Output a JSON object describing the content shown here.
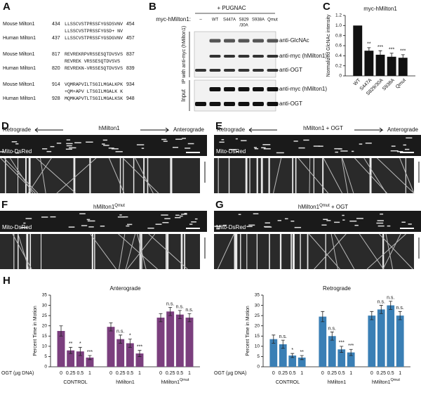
{
  "alignment": {
    "panel_label": "A",
    "blocks": [
      {
        "rows": [
          {
            "species": "Mouse Milton1",
            "start": 434,
            "seq": "LLSSCVSTPRSSFYGSDSVNV",
            "end": 454
          },
          {
            "consensus": "LLSSCVSTPRSSFYGSD+ NV"
          },
          {
            "species": "Human Milton1",
            "start": 437,
            "seq": "LLSSCVSTPRSSFYGSDGVNV",
            "end": 457
          }
        ]
      },
      {
        "rows": [
          {
            "species": "Mouse Milton1",
            "start": 817,
            "seq": "REVREKRPVRSSESQTDVSVS",
            "end": 837
          },
          {
            "consensus": "REVREK  VRSSESQTDVSVS"
          },
          {
            "species": "Human Milton1",
            "start": 820,
            "seq": "REVREKN-VRSSESQTDVSVS",
            "end": 839
          }
        ]
      },
      {
        "rows": [
          {
            "species": "Mouse Milton1",
            "start": 914,
            "seq": "VQMRAPVILTSGILMGALKPK",
            "end": 934
          },
          {
            "consensus": "+QM+APV LTSGILMGALK K"
          },
          {
            "species": "Human Milton1",
            "start": 928,
            "seq": "MQMKAPVTLTSGILMGALKSK",
            "end": 948
          }
        ]
      }
    ]
  },
  "blot": {
    "panel_label": "B",
    "treatment": "+ PUGNAC",
    "construct_label": "myc-hMilton1:",
    "lanes": [
      [
        "–"
      ],
      [
        "WT"
      ],
      [
        "S447A"
      ],
      [
        "S829",
        "/30A"
      ],
      [
        "S938A"
      ],
      [
        "Qmut"
      ]
    ],
    "ip_label": "IP with anti-myc (hMilton1)",
    "input_label": "Input",
    "ip_antibodies": [
      "anti-GlcNAc",
      "anti-myc (hMilton1)",
      "anti-OGT"
    ],
    "input_antibodies": [
      "anti-myc (hMilton1)",
      "anti-OGT"
    ]
  },
  "kymographs": [
    {
      "panel_label": "D",
      "left": "Retrograde",
      "title": {
        "main": "hMilton1"
      },
      "right": "Anterograde",
      "channel": "Mito-DsRed"
    },
    {
      "panel_label": "E",
      "left": "Retrograde",
      "title": {
        "main": "hMilton1 + OGT"
      },
      "right": "Anterograde",
      "channel": "Mito-DsRed"
    },
    {
      "panel_label": "F",
      "title": {
        "main": "hMilton1",
        "sup": "Qmut"
      },
      "channel": "Mito-DsRed"
    },
    {
      "panel_label": "G",
      "title": {
        "main": "hMilton1",
        "sup": "Qmut",
        "tail": " + OGT"
      },
      "channel": "Mito-DsRed"
    }
  ],
  "chart_data": [
    {
      "panel_label": "C",
      "type": "bar",
      "title": "myc-hMilton1",
      "ylabel": "Normalized GlcNAc intensity",
      "categories": [
        "WT",
        "S447A",
        "S829/30A",
        "S938A",
        "Qmut"
      ],
      "values": [
        1,
        0.5,
        0.42,
        0.38,
        0.36
      ],
      "errors": [
        null,
        0.06,
        0.08,
        0.07,
        0.06
      ],
      "annotations": [
        null,
        "**",
        "***",
        "***",
        "***"
      ],
      "color": "#111111",
      "ylim": [
        0,
        1.2
      ],
      "yticks": [
        0,
        0.2,
        0.4,
        0.6,
        0.8,
        {
          "value": 1,
          "label": "1.0"
        },
        1.2
      ]
    },
    {
      "panel_label": "H",
      "type": "bar",
      "title": "Anterograde",
      "ylabel": "Percent Time in Motion",
      "xlabel": "OGT (µg DNA)",
      "categories": [
        "0",
        "0.25",
        "0.5",
        "1",
        "0",
        "0.25",
        "0.5",
        "1",
        "0",
        "0.25",
        "0.5",
        "1"
      ],
      "groups": [
        {
          "name": "CONTROL"
        },
        {
          "name": "hMilton1"
        },
        {
          "name": "hMilton1",
          "sup": "Qmut"
        }
      ],
      "values": [
        17.5,
        8,
        7.5,
        4.5,
        19.5,
        13.5,
        11.5,
        6.5,
        24,
        27,
        25.5,
        24
      ],
      "errors": [
        2.5,
        1.5,
        2,
        1,
        2,
        2,
        2,
        1.5,
        2,
        2,
        2,
        2
      ],
      "annotations": [
        null,
        "**",
        "*",
        "***",
        null,
        "n.s.",
        "*",
        "***",
        null,
        "n.s.",
        "n.s.",
        "n.s."
      ],
      "color": "#7b3f7e",
      "ylim": [
        0,
        35
      ],
      "yticks": [
        0,
        5,
        10,
        15,
        20,
        25,
        30,
        35
      ]
    },
    {
      "type": "bar",
      "title": "Retrograde",
      "ylabel": "Percent Time in Motion",
      "xlabel": "OGT (µg DNA)",
      "categories": [
        "0",
        "0.25",
        "0.5",
        "1",
        "0",
        "0.25",
        "0.5",
        "1",
        "0",
        "0.25",
        "0.5",
        "1"
      ],
      "groups": [
        {
          "name": "CONTROL"
        },
        {
          "name": "hMilton1"
        },
        {
          "name": "hMilton1",
          "sup": "Qmut"
        }
      ],
      "values": [
        13.5,
        11,
        5.5,
        4.5,
        24.5,
        15,
        8.5,
        7,
        25,
        28,
        30,
        25
      ],
      "errors": [
        2,
        2,
        1,
        1,
        2.5,
        2,
        1.5,
        1.5,
        2,
        2,
        2,
        2
      ],
      "annotations": [
        null,
        "n.s.",
        "*",
        "**",
        null,
        "n.s.",
        "***",
        "***",
        null,
        "n.s.",
        "n.s.",
        "n.s."
      ],
      "color": "#3a7fb5",
      "ylim": [
        0,
        35
      ],
      "yticks": [
        0,
        5,
        10,
        15,
        20,
        25,
        30,
        35
      ]
    }
  ]
}
